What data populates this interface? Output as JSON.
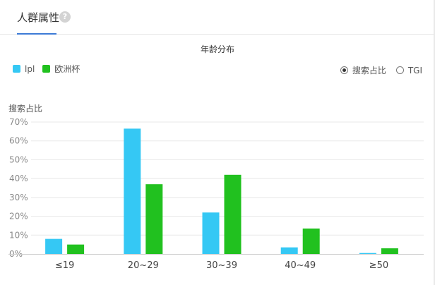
{
  "header": {
    "tab_label": "人群属性",
    "help_icon": "question-circle-icon",
    "help_glyph": "?"
  },
  "legend": [
    {
      "label": "lpl",
      "color": "#35c8f4"
    },
    {
      "label": "欧洲杯",
      "color": "#21c11f"
    }
  ],
  "radios": [
    {
      "label": "搜索占比",
      "checked": true
    },
    {
      "label": "TGI",
      "checked": false
    }
  ],
  "chart_data": {
    "type": "bar",
    "title": "年龄分布",
    "xlabel": "",
    "ylabel": "搜索占比",
    "categories": [
      "≤19",
      "20~29",
      "30~39",
      "40~49",
      "≥50"
    ],
    "series": [
      {
        "name": "lpl",
        "values": [
          8,
          66.5,
          22,
          3.5,
          0.5
        ]
      },
      {
        "name": "欧洲杯",
        "values": [
          5,
          37,
          42,
          13.5,
          3
        ]
      }
    ],
    "ylim": [
      0,
      70
    ],
    "yticks": [
      "0%",
      "10%",
      "20%",
      "30%",
      "40%",
      "50%",
      "60%",
      "70%"
    ],
    "grid": true,
    "legend_position": "top-left"
  }
}
